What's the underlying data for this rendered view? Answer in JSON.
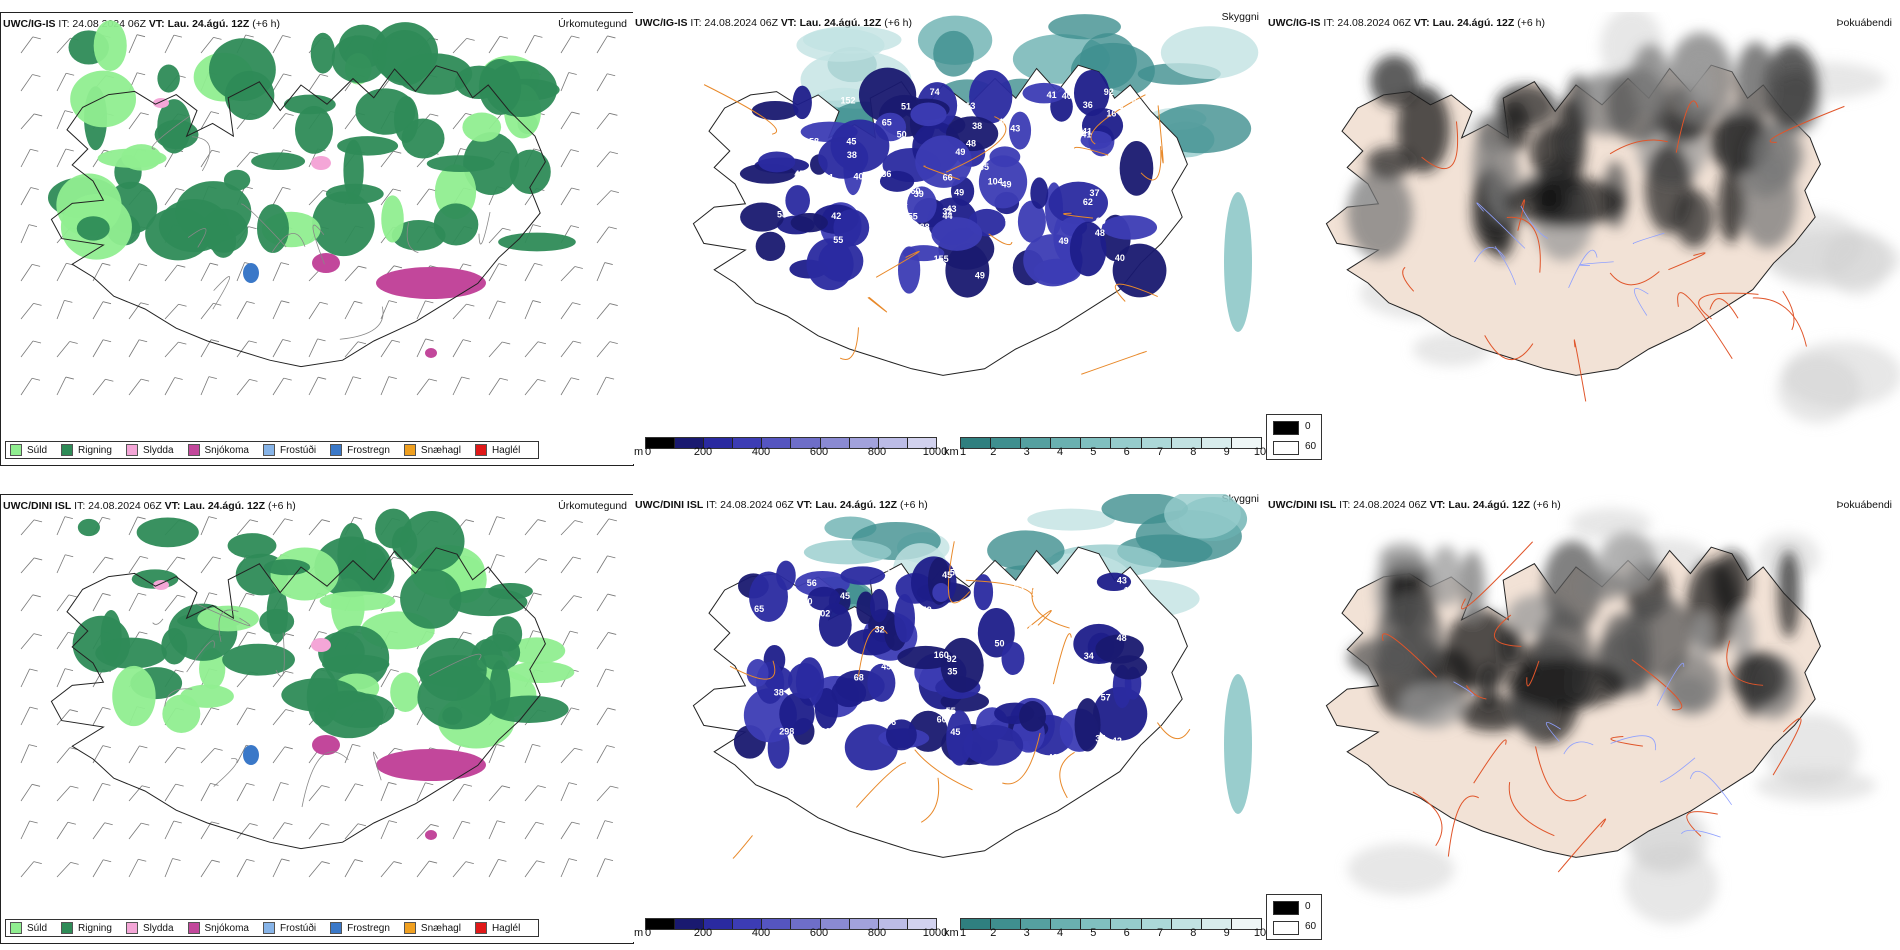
{
  "rows": [
    {
      "precip": {
        "model": "UWC/IG-IS",
        "it": "IT: 24.08.2024 06Z",
        "vt": "VT: Lau. 24.ágú. 12Z",
        "lead": "(+6 h)",
        "title": "Úrkomutegund"
      },
      "cloud": {
        "model": "UWC/IG-IS",
        "it": "IT: 24.08.2024 06Z",
        "vt": "VT: Lau. 24.ágú. 12Z",
        "lead": "(+6 h)",
        "title": "Skyggni"
      },
      "fog": {
        "model": "UWC/IG-IS",
        "it": "IT: 24.08.2024 06Z",
        "vt": "VT: Lau. 24.ágú. 12Z",
        "lead": "(+6 h)",
        "title": "Þokuábendi"
      },
      "numbers": [
        "80",
        "49",
        "41",
        "69",
        "45",
        "74",
        "62",
        "74",
        "66",
        "61",
        "56",
        "38",
        "41",
        "35",
        "42",
        "50",
        "65",
        "213",
        "49",
        "95",
        "49",
        "48",
        "57",
        "41",
        "49",
        "44",
        "43",
        "35",
        "104",
        "92",
        "40",
        "38",
        "38",
        "58",
        "36",
        "51",
        "38",
        "40",
        "45",
        "37",
        "60",
        "16",
        "55",
        "35",
        "61",
        "155",
        "73",
        "55",
        "39",
        "32",
        "36",
        "49",
        "58",
        "48",
        "49",
        "40",
        "152",
        "93",
        "44",
        "36",
        "43"
      ]
    },
    {
      "precip": {
        "model": "UWC/DINI ISL",
        "it": "IT: 24.08.2024 06Z",
        "vt": "VT: Lau. 24.ágú. 12Z",
        "lead": "(+6 h)",
        "title": "Úrkomutegund"
      },
      "cloud": {
        "model": "UWC/DINI ISL",
        "it": "IT: 24.08.2024 06Z",
        "vt": "VT: Lau. 24.ágú. 12Z",
        "lead": "(+6 h)",
        "title": "Skyggni"
      },
      "fog": {
        "model": "UWC/DINI ISL",
        "it": "IT: 24.08.2024 06Z",
        "vt": "VT: Lau. 24.ágú. 12Z",
        "lead": "(+6 h)",
        "title": "Þokuábendi"
      },
      "numbers": [
        "100",
        "54",
        "53",
        "62",
        "60",
        "102",
        "45",
        "30",
        "37",
        "49",
        "35",
        "35",
        "57",
        "45",
        "129",
        "68",
        "56",
        "45",
        "65",
        "42",
        "50",
        "53",
        "32",
        "39",
        "41",
        "56",
        "34",
        "50",
        "48",
        "38",
        "100",
        "47",
        "43",
        "55",
        "160",
        "32",
        "33",
        "38",
        "45",
        "57",
        "43",
        "47",
        "65",
        "55",
        "63",
        "60",
        "298",
        "37",
        "92",
        "42"
      ]
    }
  ],
  "precip_legend": [
    {
      "label": "Súld",
      "color": "#90ee90"
    },
    {
      "label": "Rigning",
      "color": "#2e8b57"
    },
    {
      "label": "Slydda",
      "color": "#f4a6d7"
    },
    {
      "label": "Snjókoma",
      "color": "#c2479b"
    },
    {
      "label": "Frostúði",
      "color": "#87b4e8"
    },
    {
      "label": "Frostregn",
      "color": "#3a78c8"
    },
    {
      "label": "Snæhagl",
      "color": "#f0a020"
    },
    {
      "label": "Haglél",
      "color": "#e01818"
    }
  ],
  "height_bar": {
    "unit": "m",
    "ticks": [
      "0",
      "200",
      "400",
      "600",
      "800",
      "1000"
    ],
    "colors": [
      "#000000",
      "#191970",
      "#2a2aa0",
      "#3c3cb4",
      "#5555c0",
      "#6e6ec8",
      "#8a8ad2",
      "#a2a2dc",
      "#bcbce6",
      "#d2d2ee"
    ]
  },
  "vis_bar": {
    "unit": "km",
    "ticks": [
      "1",
      "2",
      "3",
      "4",
      "5",
      "6",
      "7",
      "8",
      "9",
      "10"
    ],
    "colors": [
      "#2f7f7f",
      "#3f8f8f",
      "#55a0a0",
      "#6ab0b0",
      "#80c0c0",
      "#96cccc",
      "#acd8d8",
      "#c2e2e2",
      "#d8ecec",
      "#eef6f6"
    ]
  },
  "fog_legend": {
    "high": "0",
    "low": "60",
    "high_color": "#000000",
    "low_color": "#ffffff"
  }
}
